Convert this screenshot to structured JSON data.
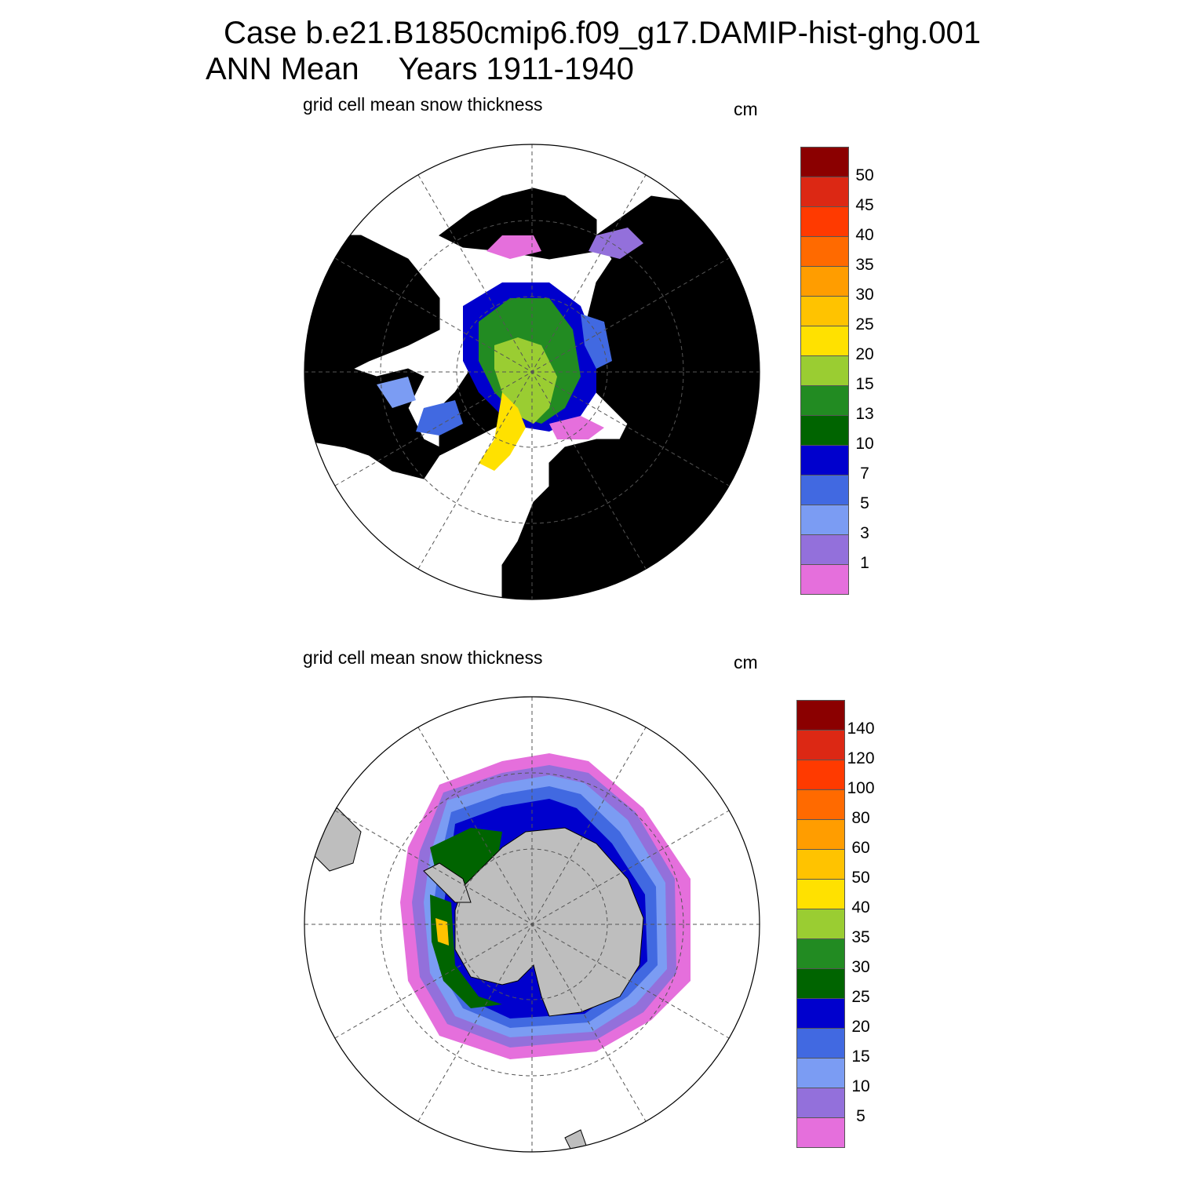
{
  "title": {
    "case_line": "Case b.e21.B1850cmip6.f09_g17.DAMIP-hist-ghg.001",
    "mean_label": "ANN Mean",
    "years_label": "Years 1911-1940"
  },
  "panels": [
    {
      "hemisphere": "north",
      "title": "grid cell mean snow thickness",
      "units": "cm",
      "colorbar": {
        "colors": [
          "#e56fdc",
          "#9370db",
          "#7b9cf3",
          "#4169e1",
          "#0000cd",
          "#006400",
          "#228b22",
          "#9acd32",
          "#ffe100",
          "#ffc300",
          "#ff9d00",
          "#ff6a00",
          "#ff3a00",
          "#dc2814",
          "#8b0000"
        ],
        "tick_labels": [
          "1",
          "3",
          "5",
          "7",
          "10",
          "13",
          "15",
          "20",
          "25",
          "30",
          "35",
          "40",
          "45",
          "50"
        ]
      }
    },
    {
      "hemisphere": "south",
      "title": "grid cell mean snow thickness",
      "units": "cm",
      "colorbar": {
        "colors": [
          "#e56fdc",
          "#9370db",
          "#7b9cf3",
          "#4169e1",
          "#0000cd",
          "#006400",
          "#228b22",
          "#9acd32",
          "#ffe100",
          "#ffc300",
          "#ff9d00",
          "#ff6a00",
          "#ff3a00",
          "#dc2814",
          "#8b0000"
        ],
        "tick_labels": [
          "5",
          "10",
          "15",
          "20",
          "25",
          "30",
          "35",
          "40",
          "50",
          "60",
          "80",
          "100",
          "120",
          "140"
        ]
      }
    }
  ],
  "colors": {
    "land": "#bebebe",
    "ocean": "#ffffff",
    "grid": "#555555"
  }
}
